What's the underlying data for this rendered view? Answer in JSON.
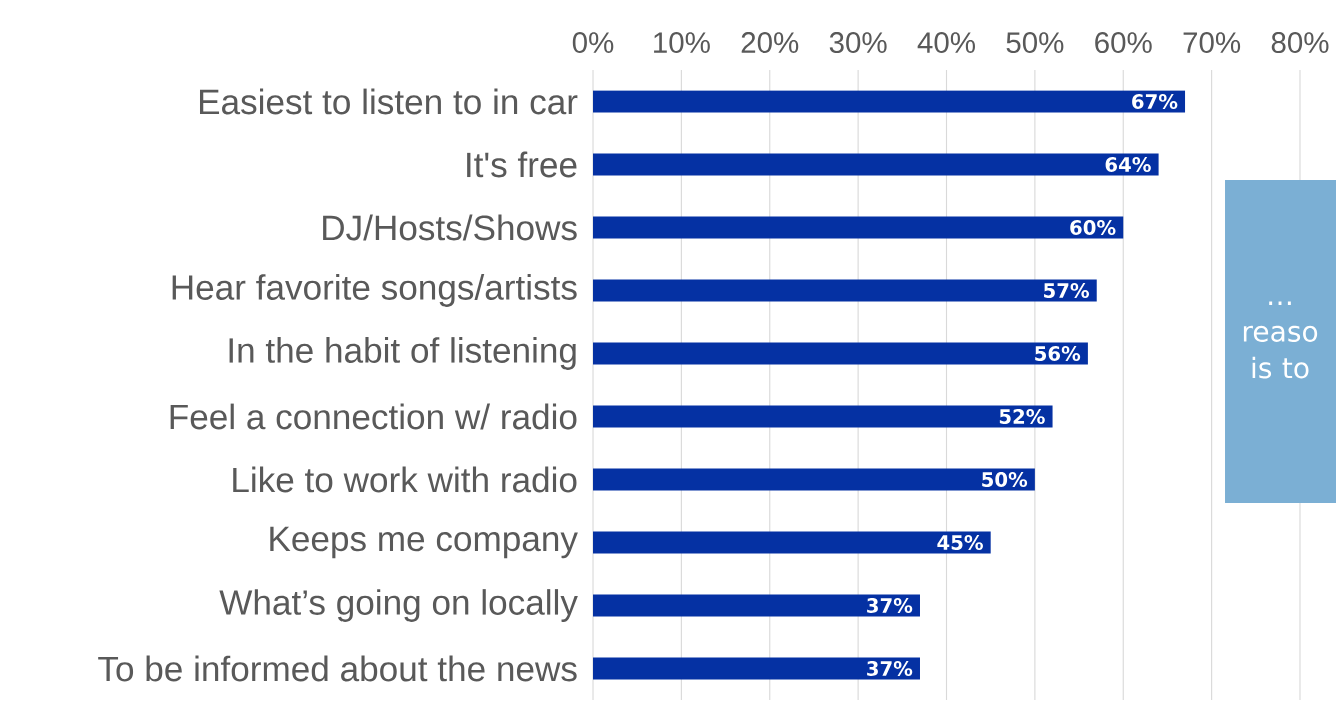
{
  "chart_data": {
    "type": "bar",
    "orientation": "horizontal",
    "categories": [
      "Easiest to listen to in car",
      "It's free",
      "DJ/Hosts/Shows",
      "Hear favorite songs/artists",
      "In the habit of listening",
      "Feel a connection w/ radio",
      "Like to work with radio",
      "Keeps me company",
      "What’s going on locally",
      "To be informed about the news"
    ],
    "values": [
      67,
      64,
      60,
      57,
      56,
      52,
      50,
      45,
      37,
      37
    ],
    "value_labels": [
      "67%",
      "64%",
      "60%",
      "57%",
      "56%",
      "52%",
      "50%",
      "45%",
      "37%",
      "37%"
    ],
    "color": "#0531a3",
    "xlim": [
      0,
      80
    ],
    "xticks": [
      {
        "value": 0,
        "label": "0%"
      },
      {
        "value": 10,
        "label": "10%"
      },
      {
        "value": 20,
        "label": "20%"
      },
      {
        "value": 30,
        "label": "30%"
      },
      {
        "value": 40,
        "label": "40%"
      },
      {
        "value": 50,
        "label": "50%"
      },
      {
        "value": 60,
        "label": "60%"
      },
      {
        "value": 70,
        "label": "70%"
      },
      {
        "value": 80,
        "label": "80%"
      }
    ],
    "grid": "x",
    "annotations": [
      "… reaso is to"
    ]
  }
}
